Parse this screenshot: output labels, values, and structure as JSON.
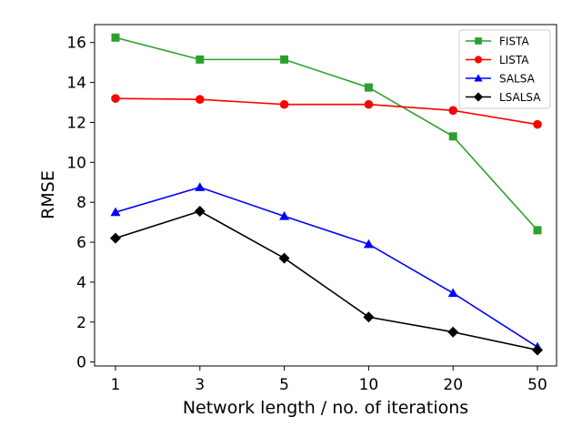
{
  "chart_data": {
    "type": "line",
    "title": "",
    "xlabel": "Network length / no. of iterations",
    "ylabel": "RMSE",
    "categories": [
      "1",
      "3",
      "5",
      "10",
      "20",
      "50"
    ],
    "ylim": [
      -0.2,
      16.9
    ],
    "yticks": [
      0,
      2,
      4,
      6,
      8,
      10,
      12,
      14,
      16
    ],
    "grid": false,
    "legend_position": "top-right",
    "series": [
      {
        "name": "FISTA",
        "color": "#2ca02c",
        "marker": "square",
        "values": [
          16.25,
          15.15,
          15.15,
          13.75,
          11.3,
          6.6
        ]
      },
      {
        "name": "LISTA",
        "color": "#ff0000",
        "marker": "circle",
        "values": [
          13.2,
          13.15,
          12.9,
          12.9,
          12.6,
          11.9
        ]
      },
      {
        "name": "SALSA",
        "color": "#0000ff",
        "marker": "triangle",
        "values": [
          7.5,
          8.75,
          7.3,
          5.9,
          3.45,
          0.75
        ]
      },
      {
        "name": "LSALSA",
        "color": "#000000",
        "marker": "diamond",
        "values": [
          6.2,
          7.55,
          5.2,
          2.25,
          1.5,
          0.6
        ]
      }
    ]
  }
}
